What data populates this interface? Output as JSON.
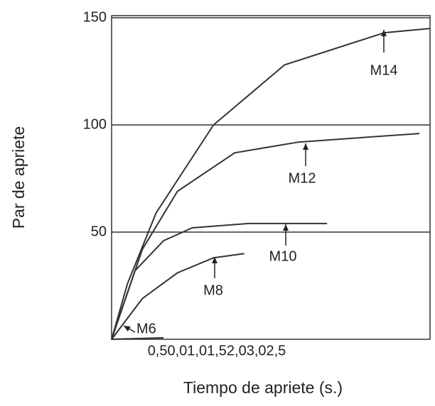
{
  "chart_data": {
    "type": "line",
    "y_label": "Par de apriete",
    "x_label": "Tiempo de apriete (s.)",
    "x_tick_text": "0,50,01,01,52,03,02,5",
    "xlim": [
      0,
      3
    ],
    "ylim": [
      0,
      150
    ],
    "yticks": [
      50,
      100,
      150
    ],
    "grid": true,
    "series": [
      {
        "name": "M14",
        "color": "#333333",
        "x": [
          0,
          0.15,
          0.42,
          0.96,
          1.63,
          2.57,
          3.0
        ],
        "values": [
          0,
          26,
          59,
          100,
          128,
          143,
          145
        ]
      },
      {
        "name": "M12",
        "color": "#333333",
        "x": [
          0,
          0.29,
          0.62,
          1.16,
          1.76,
          2.9
        ],
        "values": [
          0,
          42,
          69,
          87,
          92,
          96
        ]
      },
      {
        "name": "M10",
        "color": "#333333",
        "x": [
          0,
          0.22,
          0.49,
          0.76,
          1.29,
          2.03
        ],
        "values": [
          0,
          32,
          46,
          52,
          54,
          54
        ]
      },
      {
        "name": "M8",
        "color": "#333333",
        "x": [
          0,
          0.29,
          0.62,
          0.96,
          1.25
        ],
        "values": [
          0,
          19,
          31,
          38,
          40
        ]
      },
      {
        "name": "M6",
        "color": "#333333",
        "x": [
          0,
          0.49
        ],
        "values": [
          0,
          0.7
        ]
      }
    ]
  }
}
